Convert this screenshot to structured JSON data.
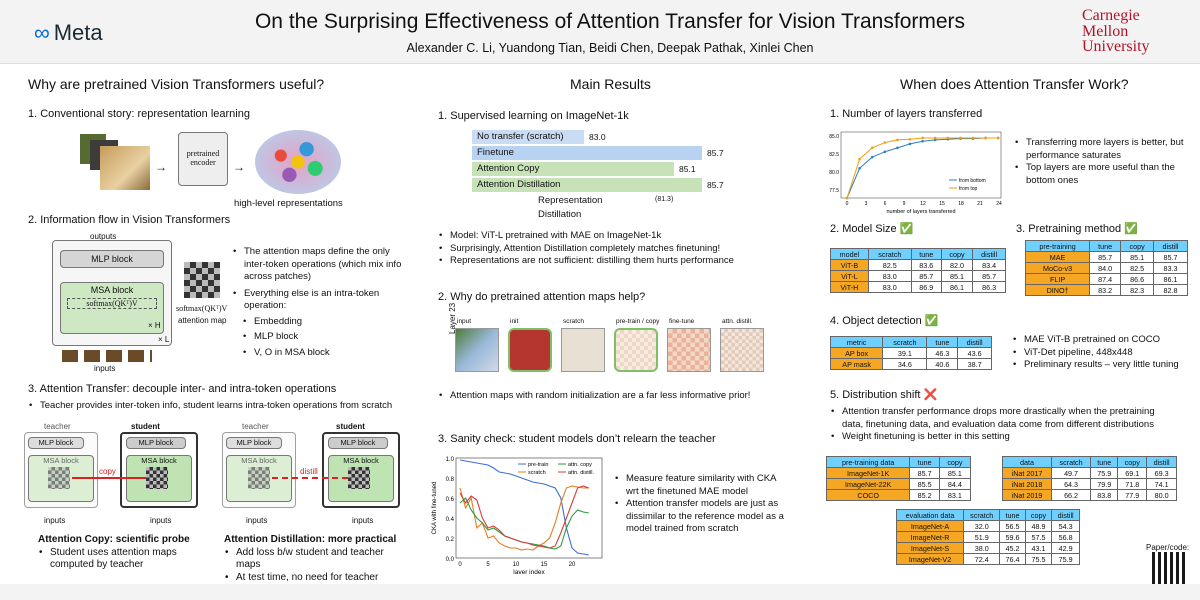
{
  "header": {
    "logo": "Meta",
    "title": "On the Surprising Effectiveness of Attention Transfer for Vision Transformers",
    "authors": "Alexander C. Li, Yuandong Tian, Beidi Chen, Deepak Pathak, Xinlei Chen",
    "cmu": [
      "Carnegie",
      "Mellon",
      "University"
    ]
  },
  "left": {
    "title": "Why are pretrained Vision Transformers useful?",
    "s1": "1. Conventional story: representation learning",
    "encoder": "pretrained encoder",
    "hlr": "high-level representations",
    "s2": "2. Information flow in Vision Transformers",
    "outputs": "outputs",
    "inputs": "inputs",
    "mlp": "MLP block",
    "msa": "MSA block",
    "softmax": "softmax(QKᵀ)V",
    "xh": "× H",
    "xl": "× L",
    "attnmap": "attention map",
    "b1": "The attention maps define the only inter-token operations (which mix info across patches)",
    "b2": "Everything else is an intra-token operation:",
    "sub": [
      "Embedding",
      "MLP block",
      "V, O in MSA block"
    ],
    "s3": "3. Attention Transfer: decouple inter- and intra-token operations",
    "b3": "Teacher provides inter-token info, student learns intra-token operations from scratch",
    "teacher": "teacher",
    "student": "student",
    "copy": "copy",
    "distill": "distill",
    "amh": "attention map × H",
    "cs_title": "Attention Copy: scientific probe",
    "cs_items": [
      "Student uses attention maps computed by teacher"
    ],
    "ds_title": "Attention Distillation: more practical",
    "ds_items": [
      "Add loss b/w student and teacher maps",
      "At test time, no need for teacher"
    ]
  },
  "mid": {
    "title": "Main Results",
    "s1": "1.   Supervised learning on ImageNet-1k",
    "bars": [
      {
        "label": "No transfer (scratch)",
        "value": "83.0",
        "color": "#c9dcf3"
      },
      {
        "label": "Finetune",
        "value": "85.7",
        "color": "#b8d3f1"
      },
      {
        "label": "Attention Copy",
        "value": "85.1",
        "color": "#c8e2b8"
      },
      {
        "label": "Attention Distillation",
        "value": "85.7",
        "color": "#c8e2b8"
      },
      {
        "label": "Representation Distillation",
        "value": "(81.3)",
        "color": "#fbe6a8"
      }
    ],
    "r1": [
      "Model: ViT-L pretrained with MAE on ImageNet-1k",
      "Surprisingly, Attention Distillation completely matches finetuning!",
      "Representations are not sufficient: distilling them hurts performance"
    ],
    "s2": "2. Why do pretrained attention maps help?",
    "maps": [
      "input",
      "init",
      "scratch",
      "pre-train / copy",
      "fine-tune",
      "attn. distill."
    ],
    "layer": "Layer 23",
    "r2": [
      "Attention maps with random initialization are a far less informative prior!"
    ],
    "s3": "3. Sanity check: student models don’t relearn the teacher",
    "r3": [
      "Measure feature similarity with CKA wrt the finetuned MAE model",
      "Attention transfer models are just as dissimilar to the reference model as a model trained from scratch"
    ],
    "chart_text": {
      "ylabel": "CKA with fine-tuned",
      "xlabel": "layer index",
      "legend": [
        "pre-train",
        "scratch",
        "attn. copy",
        "attn. distill."
      ],
      "xticks": [
        "0",
        "5",
        "10",
        "15",
        "20"
      ],
      "yticks": [
        "1.0",
        "0.8",
        "0.6",
        "0.4",
        "0.2",
        "0.0"
      ]
    }
  },
  "right": {
    "title": "When does Attention Transfer Work?",
    "s1": "1. Number of layers transferred",
    "r1": [
      "Transferring more layers is better, but performance saturates",
      "Top layers are more useful than the bottom ones"
    ],
    "layers_chart": {
      "xlabel": "number of layers transferred",
      "legend": [
        "from bottom",
        "from top"
      ],
      "xticks": [
        "0",
        "3",
        "6",
        "9",
        "12",
        "15",
        "18",
        "21",
        "24"
      ],
      "yticks": [
        "85.0",
        "82.5",
        "80.0",
        "77.5"
      ]
    },
    "s2": "2. Model Size ✅",
    "model": {
      "head": [
        "model",
        "scratch",
        "tune",
        "copy",
        "distill"
      ],
      "rows": [
        [
          "ViT-B",
          "82.5",
          "83.6",
          "82.0",
          "83.4"
        ],
        [
          "ViT-L",
          "83.0",
          "85.7",
          "85.1",
          "85.7"
        ],
        [
          "ViT-H",
          "83.0",
          "86.9",
          "86.1",
          "86.3"
        ]
      ]
    },
    "s3": "3. Pretraining method ✅",
    "pre": {
      "head": [
        "pre-training",
        "tune",
        "copy",
        "distill"
      ],
      "rows": [
        [
          "MAE",
          "85.7",
          "85.1",
          "85.7"
        ],
        [
          "MoCo-v3",
          "84.0",
          "82.5",
          "83.3"
        ],
        [
          "FLIP",
          "87.4",
          "86.6",
          "86.1"
        ],
        [
          "DINO†",
          "83.2",
          "82.3",
          "82.8"
        ]
      ]
    },
    "s4": "4. Object detection ✅",
    "det": {
      "head": [
        "metric",
        "scratch",
        "tune",
        "distill"
      ],
      "rows": [
        [
          "AP box",
          "39.1",
          "46.3",
          "43.6"
        ],
        [
          "AP mask",
          "34.6",
          "40.6",
          "38.7"
        ]
      ]
    },
    "r4": [
      "MAE ViT-B pretrained on COCO",
      "ViT-Det pipeline, 448x448",
      "Preliminary results – very little tuning"
    ],
    "s5": "5. Distribution shift ❌",
    "r5": [
      "Attention transfer performance drops more drastically when the pretraining data, finetuning data, and evaluation data come from different distributions",
      "Weight finetuning is better in this setting"
    ],
    "ds1": {
      "head": [
        "pre-training data",
        "tune",
        "copy"
      ],
      "rows": [
        [
          "ImageNet-1K",
          "85.7",
          "85.1"
        ],
        [
          "ImageNet-22K",
          "85.5",
          "84.4"
        ],
        [
          "COCO",
          "85.2",
          "83.1"
        ]
      ]
    },
    "ds2": {
      "head": [
        "data",
        "scratch",
        "tune",
        "copy",
        "distill"
      ],
      "rows": [
        [
          "iNat 2017",
          "49.7",
          "75.9",
          "69.1",
          "69.3"
        ],
        [
          "iNat 2018",
          "64.3",
          "79.9",
          "71.8",
          "74.1"
        ],
        [
          "iNat 2019",
          "66.2",
          "83.8",
          "77.9",
          "80.0"
        ]
      ]
    },
    "ds3": {
      "head": [
        "evaluation data",
        "scratch",
        "tune",
        "copy",
        "distill"
      ],
      "rows": [
        [
          "ImageNet-A",
          "32.0",
          "56.5",
          "48.9",
          "54.3"
        ],
        [
          "ImageNet-R",
          "51.9",
          "59.6",
          "57.5",
          "56.8"
        ],
        [
          "ImageNet-S",
          "38.0",
          "45.2",
          "43.1",
          "42.9"
        ],
        [
          "ImageNet-V2",
          "72.4",
          "76.4",
          "75.5",
          "75.9"
        ]
      ]
    },
    "paper": "Paper/code:"
  }
}
